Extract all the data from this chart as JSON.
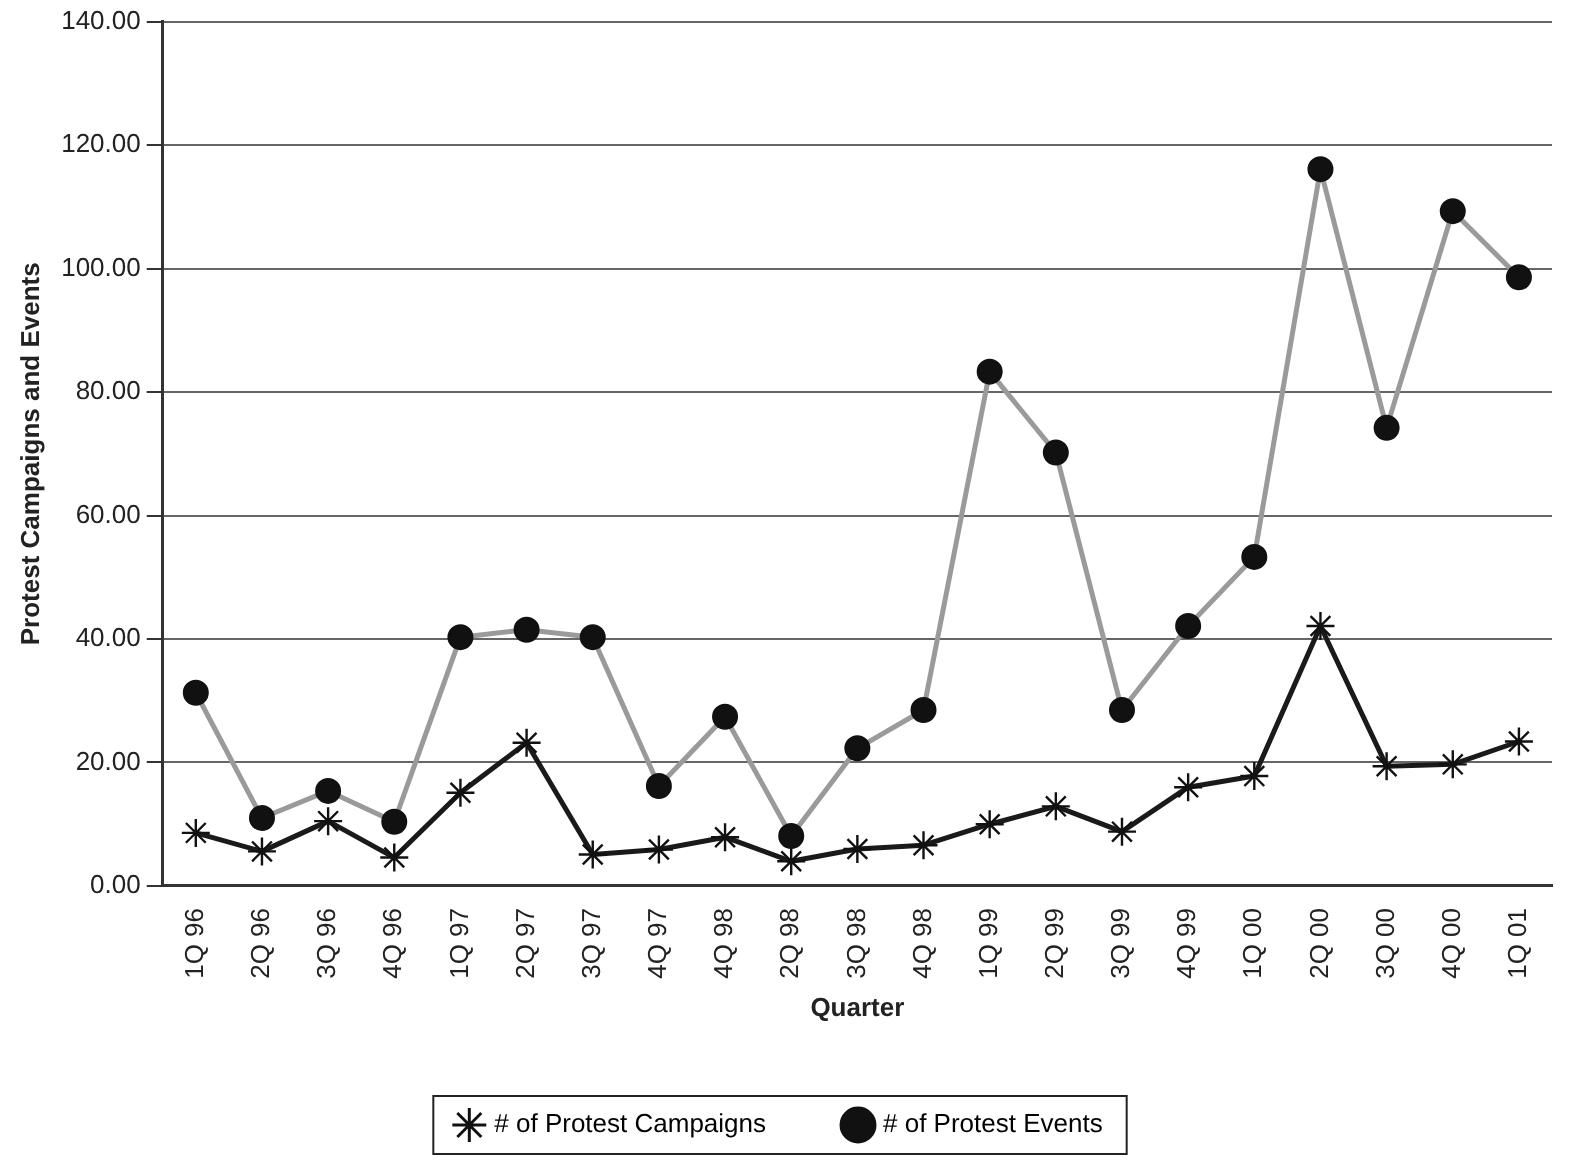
{
  "chart_data": {
    "type": "line",
    "xlabel": "Quarter",
    "ylabel": "Protest Campaigns and Events",
    "categories": [
      "1Q 96",
      "2Q 96",
      "3Q 96",
      "4Q 96",
      "1Q 97",
      "2Q 97",
      "3Q 97",
      "4Q 97",
      "4Q 98",
      "2Q 98",
      "3Q 98",
      "4Q 98",
      "1Q 99",
      "2Q 99",
      "3Q 99",
      "4Q 99",
      "1Q 00",
      "2Q 00",
      "3Q 00",
      "4Q 00",
      "1Q 01"
    ],
    "series": [
      {
        "name": "# of Protest Campaigns",
        "color": "#1a1a1a",
        "marker": "cross",
        "values": [
          8.6,
          5.6,
          10.5,
          4.6,
          15.1,
          23.2,
          5.1,
          5.9,
          7.9,
          4.0,
          6.0,
          6.6,
          10.0,
          12.9,
          8.8,
          16.0,
          17.8,
          42.1,
          19.4,
          19.7,
          23.4
        ]
      },
      {
        "name": "# of Protest Events",
        "color": "#9a9a9a",
        "marker": "circle",
        "values": [
          31.3,
          11.0,
          15.4,
          10.4,
          40.3,
          41.5,
          40.3,
          16.2,
          27.4,
          8.1,
          22.3,
          28.5,
          83.3,
          70.2,
          28.5,
          42.1,
          53.3,
          116.1,
          74.2,
          109.3,
          98.6
        ]
      }
    ],
    "ylim": [
      0,
      140
    ],
    "yticks": [
      {
        "value": 0,
        "label": "0.00"
      },
      {
        "value": 20,
        "label": "20.00"
      },
      {
        "value": 40,
        "label": "40.00"
      },
      {
        "value": 60,
        "label": "60.00"
      },
      {
        "value": 80,
        "label": "80.00"
      },
      {
        "value": 100,
        "label": "100.00"
      },
      {
        "value": 120,
        "label": "120.00"
      },
      {
        "value": 140,
        "label": "140.00"
      }
    ],
    "grid": "y",
    "legend": "bottom",
    "line_style": "solid"
  }
}
